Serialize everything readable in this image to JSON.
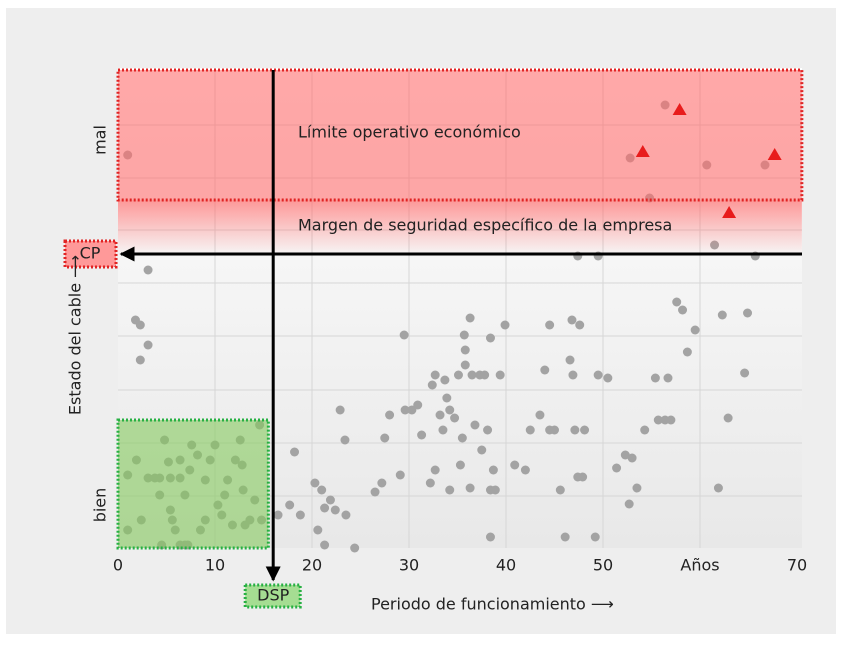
{
  "chart_data": {
    "type": "scatter",
    "xlabel": "Periodo de funcionamiento ⟶",
    "ylabel": "Estado del cable ⟶",
    "xlim": [
      0,
      70
    ],
    "ylim": [
      0,
      480
    ],
    "xticks": [
      0,
      10,
      20,
      30,
      40,
      50,
      {
        "value": 60,
        "label": "Años"
      },
      70
    ],
    "yticks": [
      {
        "value": 43,
        "label": "bien"
      },
      {
        "value": 408,
        "label": "mal"
      }
    ],
    "ygrid": [
      52,
      105,
      158,
      212,
      265,
      318,
      370,
      423
    ],
    "grid": true,
    "series": [
      {
        "color": "#a3a3a3",
        "marker": "circle",
        "x": [
          1.0,
          1.0,
          1.9,
          2.4,
          3.1,
          3.8,
          4.3,
          4.3,
          4.8,
          5.2,
          5.4,
          5.6,
          5.9,
          6.4,
          6.9,
          7.2,
          4.5,
          5.4,
          6.4,
          6.4,
          6.9,
          7.4,
          7.6,
          8.2,
          8.5,
          9.0,
          9.0,
          9.5,
          10.0,
          10.3,
          10.7,
          11.0,
          11.3,
          11.8,
          12.1,
          12.6,
          12.8,
          12.9,
          13.1,
          13.6,
          14.1,
          14.6,
          14.8,
          1.0,
          3.1,
          1.8,
          2.3,
          3.1,
          2.3,
          16.5,
          17.7,
          18.2,
          18.8,
          20.3,
          21.0,
          20.6,
          21.3,
          21.9,
          22.4,
          22.9,
          23.4,
          23.5,
          21.3,
          24.4,
          26.5,
          27.2,
          27.5,
          28.0,
          29.1,
          29.5,
          29.6,
          30.3,
          30.9,
          31.3,
          32.2,
          32.4,
          32.7,
          32.7,
          33.2,
          33.7,
          33.9,
          33.5,
          34.2,
          34.2,
          34.7,
          35.1,
          35.3,
          35.5,
          35.7,
          35.8,
          35.8,
          36.3,
          36.3,
          36.5,
          36.8,
          37.3,
          37.8,
          37.5,
          38.1,
          38.4,
          38.4,
          38.4,
          38.7,
          38.9,
          39.4,
          39.9,
          40.9,
          42.0,
          42.5,
          43.5,
          44.0,
          44.5,
          44.5,
          45.0,
          45.6,
          46.1,
          46.6,
          46.8,
          46.9,
          47.1,
          47.4,
          47.6,
          47.9,
          48.1,
          49.2,
          49.5,
          50.5,
          51.4,
          52.3,
          52.7,
          53.0,
          53.5,
          54.3,
          55.4,
          55.7,
          56.4,
          56.7,
          57.0,
          57.6,
          58.2,
          58.7,
          59.5,
          61.9,
          62.3,
          62.9,
          64.6,
          64.9,
          47.4,
          49.5,
          61.5,
          65.7,
          52.8,
          54.8,
          56.4,
          60.7,
          66.7
        ],
        "y": [
          73,
          18,
          88,
          28,
          70,
          70,
          70,
          53,
          108,
          86,
          38,
          28,
          18,
          3,
          3,
          3,
          3,
          70,
          70,
          88,
          53,
          78,
          103,
          93,
          18,
          68,
          28,
          88,
          103,
          43,
          33,
          53,
          68,
          23,
          88,
          108,
          83,
          58,
          23,
          28,
          48,
          123,
          28,
          393,
          278,
          228,
          223,
          203,
          188,
          33,
          43,
          96,
          33,
          65,
          58,
          18,
          40,
          48,
          38,
          138,
          108,
          33,
          3,
          0,
          56,
          65,
          110,
          133,
          73,
          213,
          138,
          138,
          143,
          113,
          65,
          163,
          173,
          78,
          133,
          168,
          150,
          118,
          138,
          58,
          130,
          173,
          83,
          110,
          213,
          198,
          183,
          230,
          60,
          173,
          123,
          173,
          173,
          98,
          118,
          58,
          210,
          11,
          78,
          58,
          173,
          223,
          83,
          78,
          118,
          133,
          178,
          223,
          118,
          118,
          58,
          11,
          188,
          228,
          173,
          118,
          71,
          223,
          71,
          118,
          11,
          173,
          170,
          80,
          93,
          44,
          90,
          60,
          118,
          170,
          128,
          128,
          170,
          128,
          246,
          238,
          196,
          218,
          60,
          233,
          130,
          175,
          235,
          292,
          292,
          303,
          292,
          390,
          350,
          443,
          383,
          383
        ]
      },
      {
        "color": "#e81c1c",
        "marker": "triangle",
        "x": [
          54.1,
          57.9,
          63.0,
          67.7
        ],
        "y": [
          396,
          438,
          335,
          393
        ]
      }
    ],
    "zones": [
      {
        "label": "Límite operativo económico",
        "x": [
          0,
          70.5
        ],
        "y": [
          348,
          478
        ],
        "color": "#ff6e6e",
        "border": "#e02424"
      },
      {
        "x": [
          0,
          15.5
        ],
        "y": [
          0,
          128
        ],
        "color": "#86c95e",
        "border": "#27b043"
      }
    ],
    "margin": {
      "label": "Margen de seguridad específico de la empresa",
      "y": [
        293,
        348
      ],
      "color": "#ff6e6e"
    },
    "cp": {
      "label": "CP",
      "value": 294
    },
    "dsp": {
      "label": "DSP",
      "value": 16.0
    }
  }
}
